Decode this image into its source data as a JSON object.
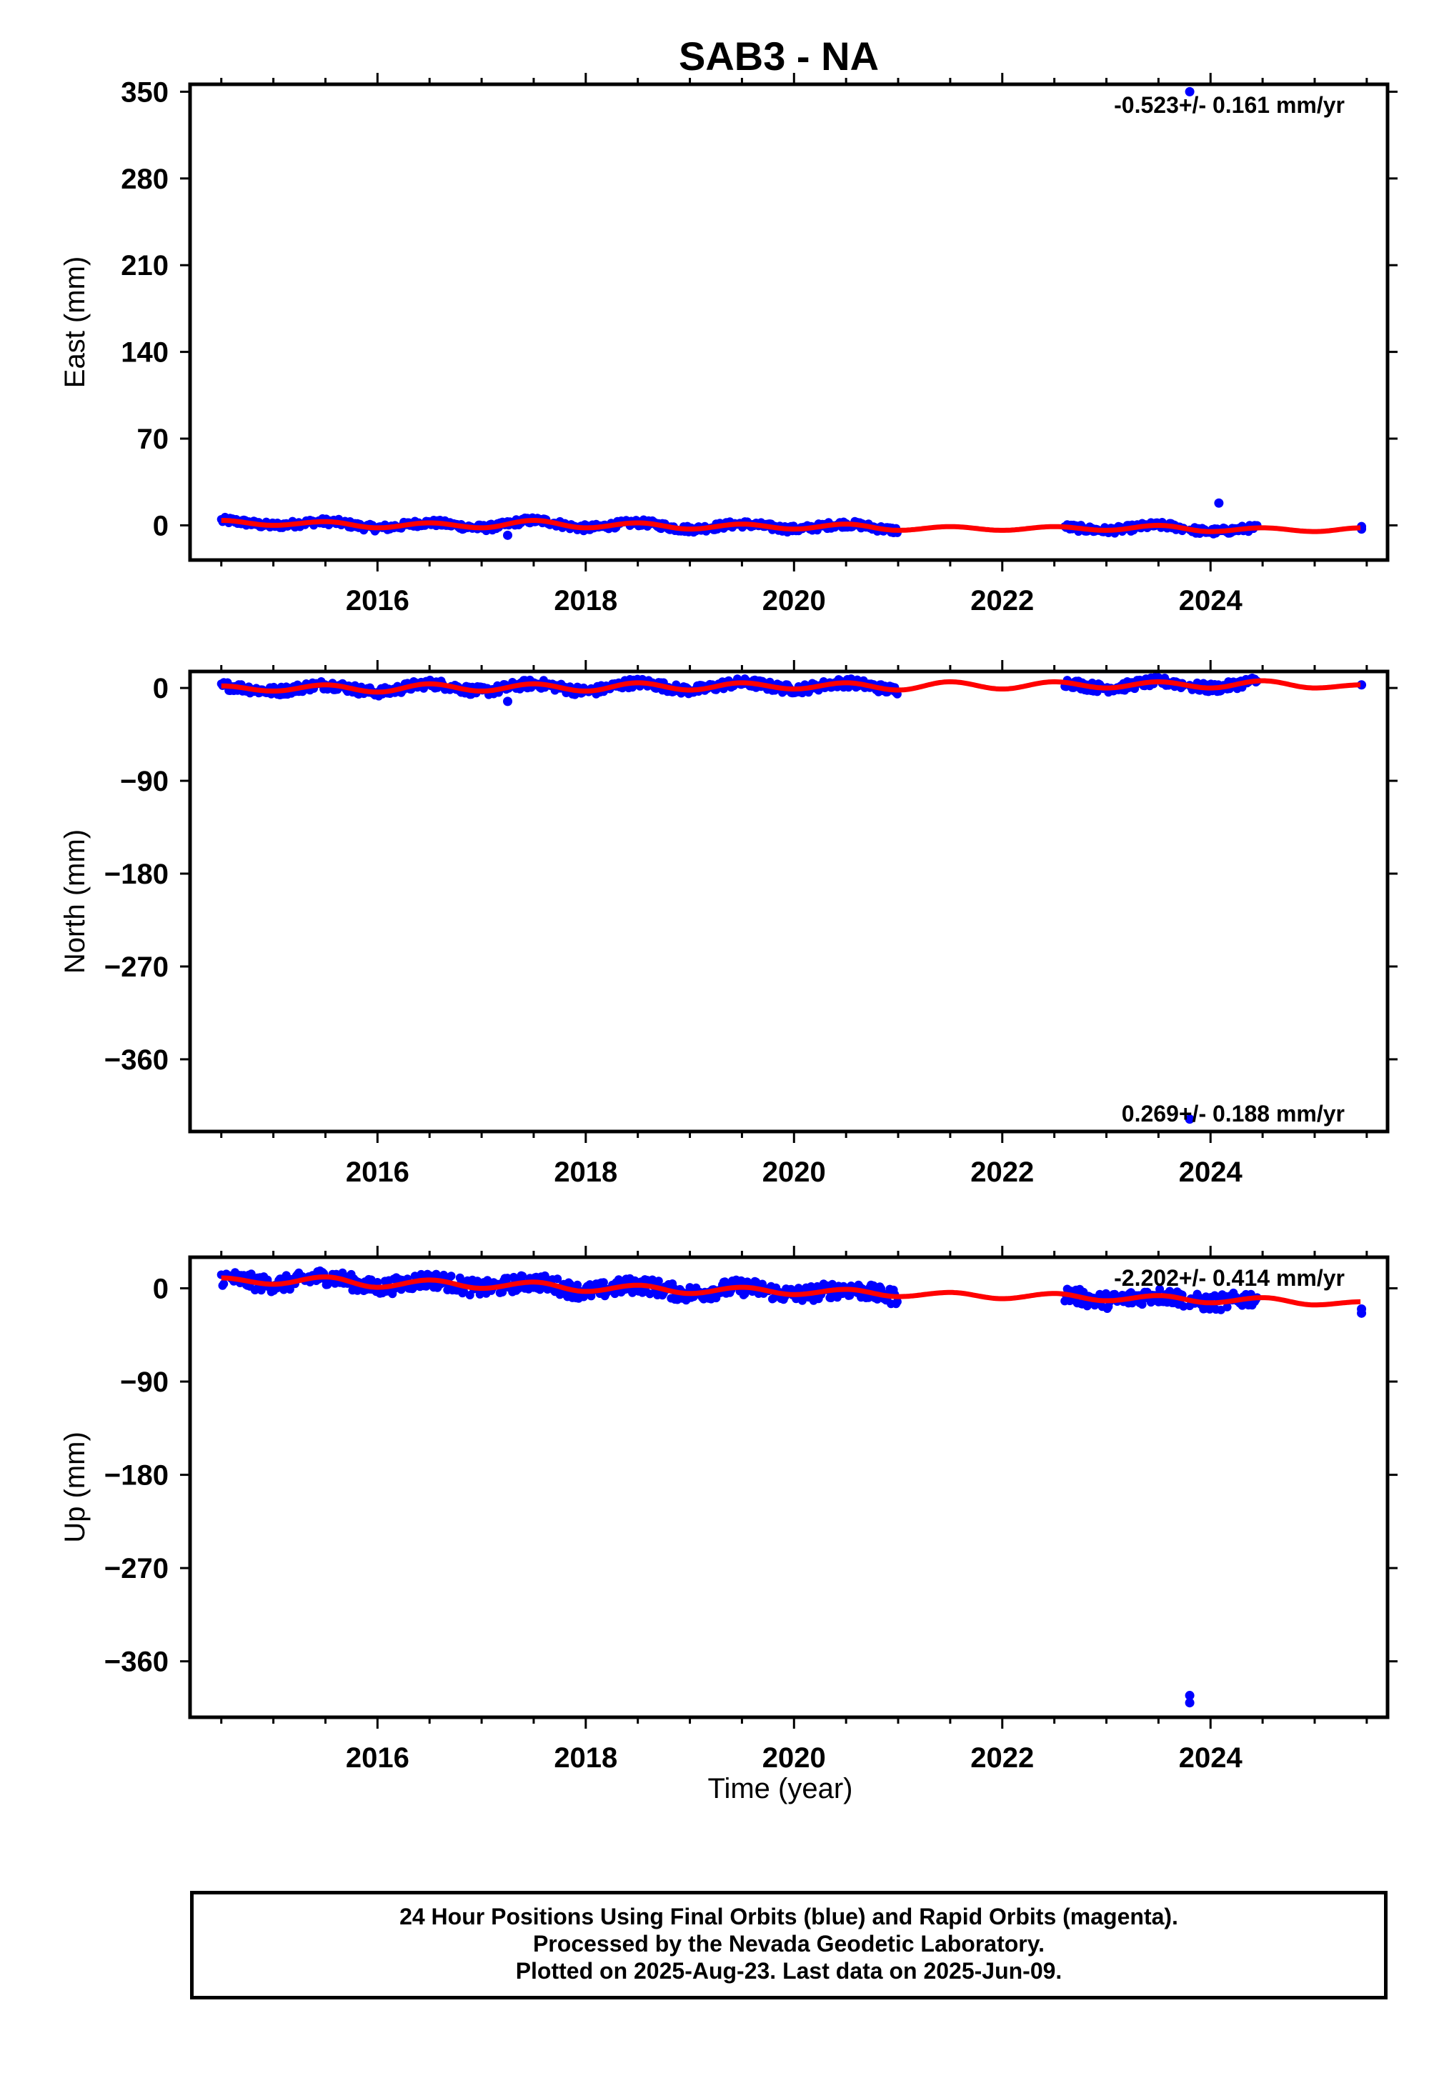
{
  "title": "SAB3 - NA",
  "xlabel": "Time (year)",
  "footer": {
    "line1": "24 Hour Positions Using Final Orbits (blue) and Rapid Orbits (magenta).",
    "line2": "Processed by the Nevada Geodetic Laboratory.",
    "line3": "Plotted on 2025-Aug-23. Last data on 2025-Jun-09."
  },
  "colors": {
    "data": "#0000ff",
    "model": "#ff0000",
    "axis": "#000000"
  },
  "chart_data": [
    {
      "type": "scatter",
      "ylabel": "East (mm)",
      "rate": "-0.523+/- 0.161 mm/yr",
      "xlim": [
        2014.2,
        2025.7
      ],
      "ylim": [
        -28,
        356
      ],
      "yticks": [
        0,
        70,
        140,
        210,
        280,
        350
      ],
      "xticks": [
        2016,
        2018,
        2020,
        2022,
        2024
      ],
      "rate_position": "top-right",
      "segments": [
        [
          2014.5,
          2021.0
        ],
        [
          2022.6,
          2023.75
        ],
        [
          2023.8,
          2024.45
        ]
      ],
      "trend": {
        "amp": 2.5,
        "phase": 0.3
      },
      "outliers": [
        {
          "x": 2023.8,
          "y": 350
        },
        {
          "x": 2024.08,
          "y": 18
        },
        {
          "x": 2017.25,
          "y": -8
        },
        {
          "x": 2025.45,
          "y": -1
        },
        {
          "x": 2025.45,
          "y": -3
        }
      ],
      "model_points": [
        [
          2014.5,
          4
        ],
        [
          2015.0,
          0
        ],
        [
          2015.5,
          3
        ],
        [
          2016.0,
          -2
        ],
        [
          2016.5,
          2
        ],
        [
          2017.0,
          -2
        ],
        [
          2017.5,
          4
        ],
        [
          2018.0,
          -2
        ],
        [
          2018.5,
          2
        ],
        [
          2019.0,
          -3
        ],
        [
          2019.5,
          1
        ],
        [
          2020.0,
          -3
        ],
        [
          2020.5,
          1
        ],
        [
          2021.0,
          -4
        ],
        [
          2021.5,
          -1
        ],
        [
          2022.0,
          -4
        ],
        [
          2022.5,
          -1
        ],
        [
          2023.0,
          -4
        ],
        [
          2023.5,
          0
        ],
        [
          2024.0,
          -5
        ],
        [
          2024.5,
          -2
        ],
        [
          2025.0,
          -5
        ],
        [
          2025.45,
          -2
        ]
      ]
    },
    {
      "type": "scatter",
      "ylabel": "North (mm)",
      "rate": "0.269+/- 0.188 mm/yr",
      "xlim": [
        2014.2,
        2025.7
      ],
      "ylim": [
        -430,
        16
      ],
      "yticks": [
        0,
        -90,
        -180,
        -270,
        -360
      ],
      "xticks": [
        2016,
        2018,
        2020,
        2022,
        2024
      ],
      "rate_position": "bottom-right",
      "segments": [
        [
          2014.5,
          2021.0
        ],
        [
          2022.6,
          2023.75
        ],
        [
          2023.8,
          2024.45
        ]
      ],
      "trend": {
        "amp": 4,
        "phase": 0.1
      },
      "outliers": [
        {
          "x": 2023.8,
          "y": -418
        },
        {
          "x": 2017.25,
          "y": -13
        },
        {
          "x": 2025.45,
          "y": 3
        }
      ],
      "model_points": [
        [
          2014.5,
          2
        ],
        [
          2015.0,
          -3
        ],
        [
          2015.5,
          3
        ],
        [
          2016.0,
          -4
        ],
        [
          2016.5,
          4
        ],
        [
          2017.0,
          -3
        ],
        [
          2017.5,
          4
        ],
        [
          2018.0,
          -3
        ],
        [
          2018.5,
          5
        ],
        [
          2019.0,
          -2
        ],
        [
          2019.5,
          5
        ],
        [
          2020.0,
          -1
        ],
        [
          2020.5,
          5
        ],
        [
          2021.0,
          -2
        ],
        [
          2021.5,
          6
        ],
        [
          2022.0,
          -1
        ],
        [
          2022.5,
          6
        ],
        [
          2023.0,
          0
        ],
        [
          2023.5,
          6
        ],
        [
          2024.0,
          0
        ],
        [
          2024.5,
          7
        ],
        [
          2025.0,
          0
        ],
        [
          2025.45,
          3
        ]
      ]
    },
    {
      "type": "scatter",
      "ylabel": "Up (mm)",
      "rate": "-2.202+/- 0.414 mm/yr",
      "xlim": [
        2014.2,
        2025.7
      ],
      "ylim": [
        -414,
        30
      ],
      "yticks": [
        0,
        -90,
        -180,
        -270,
        -360
      ],
      "xticks": [
        2016,
        2018,
        2020,
        2022,
        2024
      ],
      "rate_position": "top-right",
      "segments": [
        [
          2014.5,
          2021.0
        ],
        [
          2022.6,
          2023.75
        ],
        [
          2023.8,
          2024.45
        ]
      ],
      "trend": {
        "amp": 7,
        "phase": 0.4
      },
      "outliers": [
        {
          "x": 2023.8,
          "y": -393
        },
        {
          "x": 2023.8,
          "y": -400
        },
        {
          "x": 2025.45,
          "y": -20
        },
        {
          "x": 2025.45,
          "y": -24
        }
      ],
      "model_points": [
        [
          2014.5,
          10
        ],
        [
          2015.0,
          4
        ],
        [
          2015.5,
          11
        ],
        [
          2016.0,
          1
        ],
        [
          2016.5,
          8
        ],
        [
          2017.0,
          0
        ],
        [
          2017.5,
          6
        ],
        [
          2018.0,
          -3
        ],
        [
          2018.5,
          3
        ],
        [
          2019.0,
          -5
        ],
        [
          2019.5,
          1
        ],
        [
          2020.0,
          -6
        ],
        [
          2020.5,
          -1
        ],
        [
          2021.0,
          -8
        ],
        [
          2021.5,
          -4
        ],
        [
          2022.0,
          -10
        ],
        [
          2022.5,
          -5
        ],
        [
          2023.0,
          -12
        ],
        [
          2023.5,
          -7
        ],
        [
          2024.0,
          -14
        ],
        [
          2024.5,
          -9
        ],
        [
          2025.0,
          -16
        ],
        [
          2025.45,
          -13
        ]
      ]
    }
  ]
}
